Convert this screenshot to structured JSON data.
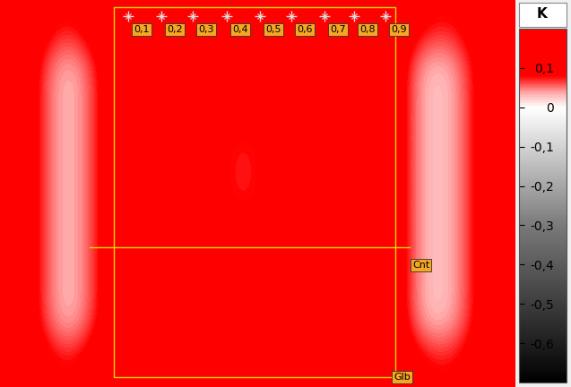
{
  "chart_data": {
    "type": "heatmap",
    "colorbar_title": "K",
    "clim": [
      -0.7,
      0.2
    ],
    "cticks": [
      {
        "value": 0.1,
        "label": "0,1"
      },
      {
        "value": 0,
        "label": "0"
      },
      {
        "value": -0.1,
        "label": "-0,1"
      },
      {
        "value": -0.2,
        "label": "-0,2"
      },
      {
        "value": -0.3,
        "label": "-0,3"
      },
      {
        "value": -0.4,
        "label": "-0,4"
      },
      {
        "value": -0.5,
        "label": "-0,5"
      },
      {
        "value": -0.6,
        "label": "-0,6"
      }
    ],
    "tick_labels": false,
    "annotations": [
      "0,1",
      "0,2",
      "0,3",
      "0,4",
      "0,5",
      "0,6",
      "0,7",
      "0,8",
      "0,9"
    ],
    "line_labels": [
      "Cnt",
      "Glb"
    ],
    "cells": [
      [
        0.15,
        0.1,
        0.08,
        0.12,
        0.15,
        0.12,
        0.1,
        0.1,
        0.1,
        0.12,
        0.15,
        0.15,
        0.15,
        0.15,
        0.1,
        0.08,
        0.1,
        0.15
      ],
      [
        0.15,
        0.06,
        0.02,
        0.08,
        0.15,
        0.1,
        0.1,
        0.1,
        0.1,
        0.1,
        0.15,
        0.15,
        0.15,
        0.15,
        0.04,
        0.02,
        0.07,
        0.15
      ],
      [
        0.15,
        0.06,
        0.02,
        0.08,
        0.15,
        0.1,
        0.1,
        0.1,
        0.1,
        0.1,
        0.15,
        0.15,
        0.15,
        0.15,
        0.04,
        0.02,
        0.07,
        0.15
      ],
      [
        0.15,
        0.06,
        0.02,
        0.08,
        0.15,
        0.1,
        0.1,
        0.1,
        0.06,
        0.1,
        0.15,
        0.15,
        0.15,
        0.15,
        0.04,
        0.02,
        0.07,
        0.15
      ],
      [
        0.15,
        0.06,
        0.02,
        0.08,
        0.15,
        0.1,
        0.1,
        0.1,
        0.06,
        0.1,
        0.15,
        0.15,
        0.15,
        0.15,
        0.04,
        0.02,
        0.07,
        0.15
      ],
      [
        0.15,
        0.06,
        0.02,
        0.08,
        0.15,
        0.1,
        0.1,
        0.1,
        0.1,
        0.1,
        0.15,
        0.15,
        0.15,
        0.15,
        0.04,
        0.02,
        0.07,
        0.15
      ],
      [
        0.15,
        0.06,
        0.02,
        0.08,
        0.15,
        0.1,
        0.1,
        0.1,
        0.1,
        0.1,
        0.15,
        0.15,
        0.15,
        0.15,
        0.04,
        0.02,
        0.07,
        0.15
      ],
      [
        0.15,
        0.06,
        0.02,
        0.08,
        0.15,
        0.1,
        0.1,
        0.1,
        0.1,
        0.1,
        0.15,
        0.15,
        0.15,
        0.15,
        0.04,
        0.02,
        0.07,
        0.15
      ],
      [
        0.15,
        0.1,
        0.08,
        0.12,
        0.15,
        0.12,
        0.1,
        0.1,
        0.1,
        0.12,
        0.15,
        0.15,
        0.15,
        0.15,
        0.1,
        0.08,
        0.1,
        0.15
      ]
    ]
  }
}
